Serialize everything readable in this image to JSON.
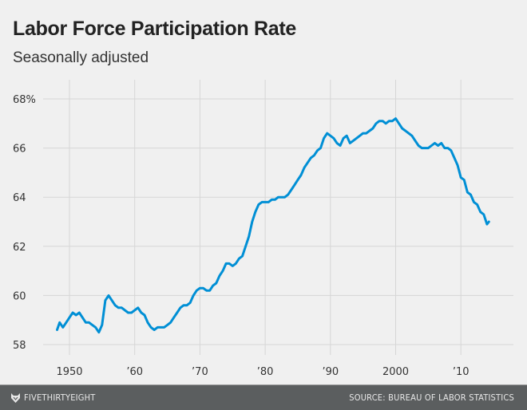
{
  "chart_data": {
    "type": "line",
    "title": "Labor Force Participation Rate",
    "subtitle": "Seasonally adjusted",
    "xlabel": "",
    "ylabel": "",
    "xlim": [
      1946,
      2018
    ],
    "ylim": [
      57.6,
      68.8
    ],
    "grid": true,
    "x_ticks": [
      1950,
      1960,
      1970,
      1980,
      1990,
      2000,
      2010
    ],
    "x_tick_labels": [
      "1950",
      "’60",
      "’70",
      "’80",
      "’90",
      "2000",
      "’10"
    ],
    "y_ticks": [
      58,
      60,
      62,
      64,
      66,
      68
    ],
    "y_tick_labels": [
      "58",
      "60",
      "62",
      "64",
      "66",
      "68%"
    ],
    "series": [
      {
        "color": "#008fd5",
        "x": [
          1948.1,
          1948.5,
          1949,
          1949.5,
          1950,
          1950.5,
          1951,
          1951.5,
          1952,
          1952.5,
          1953,
          1953.5,
          1954,
          1954.5,
          1955,
          1955.5,
          1956,
          1956.5,
          1957,
          1957.5,
          1958,
          1958.5,
          1959,
          1959.5,
          1960,
          1960.5,
          1961,
          1961.5,
          1962,
          1962.5,
          1963,
          1963.5,
          1964,
          1964.5,
          1965,
          1965.5,
          1966,
          1966.5,
          1967,
          1967.5,
          1968,
          1968.5,
          1969,
          1969.5,
          1970,
          1970.5,
          1971,
          1971.5,
          1972,
          1972.5,
          1973,
          1973.5,
          1974,
          1974.5,
          1975,
          1975.5,
          1976,
          1976.5,
          1977,
          1977.5,
          1978,
          1978.5,
          1979,
          1979.5,
          1980,
          1980.5,
          1981,
          1981.5,
          1982,
          1982.5,
          1983,
          1983.5,
          1984,
          1984.5,
          1985,
          1985.5,
          1986,
          1986.5,
          1987,
          1987.5,
          1988,
          1988.5,
          1989,
          1989.5,
          1990,
          1990.5,
          1991,
          1991.5,
          1992,
          1992.5,
          1993,
          1993.5,
          1994,
          1994.5,
          1995,
          1995.5,
          1996,
          1996.5,
          1997,
          1997.5,
          1998,
          1998.5,
          1999,
          1999.5,
          2000,
          2000.5,
          2001,
          2001.5,
          2002,
          2002.5,
          2003,
          2003.5,
          2004,
          2004.5,
          2005,
          2005.5,
          2006,
          2006.5,
          2007,
          2007.5,
          2008,
          2008.5,
          2009,
          2009.5,
          2010,
          2010.5,
          2011,
          2011.5,
          2012,
          2012.5,
          2013,
          2013.5,
          2014,
          2014.3
        ],
        "y": [
          58.6,
          58.9,
          58.7,
          58.9,
          59.1,
          59.3,
          59.2,
          59.3,
          59.1,
          58.9,
          58.9,
          58.8,
          58.7,
          58.5,
          58.8,
          59.8,
          60.0,
          59.8,
          59.6,
          59.5,
          59.5,
          59.4,
          59.3,
          59.3,
          59.4,
          59.5,
          59.3,
          59.2,
          58.9,
          58.7,
          58.6,
          58.7,
          58.7,
          58.7,
          58.8,
          58.9,
          59.1,
          59.3,
          59.5,
          59.6,
          59.6,
          59.7,
          60.0,
          60.2,
          60.3,
          60.3,
          60.2,
          60.2,
          60.4,
          60.5,
          60.8,
          61.0,
          61.3,
          61.3,
          61.2,
          61.3,
          61.5,
          61.6,
          62.0,
          62.4,
          63.0,
          63.4,
          63.7,
          63.8,
          63.8,
          63.8,
          63.9,
          63.9,
          64.0,
          64.0,
          64.0,
          64.1,
          64.3,
          64.5,
          64.7,
          64.9,
          65.2,
          65.4,
          65.6,
          65.7,
          65.9,
          66.0,
          66.4,
          66.6,
          66.5,
          66.4,
          66.2,
          66.1,
          66.4,
          66.5,
          66.2,
          66.3,
          66.4,
          66.5,
          66.6,
          66.6,
          66.7,
          66.8,
          67.0,
          67.1,
          67.1,
          67.0,
          67.1,
          67.1,
          67.2,
          67.0,
          66.8,
          66.7,
          66.6,
          66.5,
          66.3,
          66.1,
          66.0,
          66.0,
          66.0,
          66.1,
          66.2,
          66.1,
          66.2,
          66.0,
          66.0,
          65.9,
          65.6,
          65.3,
          64.8,
          64.7,
          64.2,
          64.1,
          63.8,
          63.7,
          63.4,
          63.3,
          62.9,
          63.0
        ]
      }
    ]
  },
  "footer": {
    "brand": "FIVETHIRTYEIGHT",
    "source": "SOURCE: BUREAU OF LABOR STATISTICS"
  }
}
